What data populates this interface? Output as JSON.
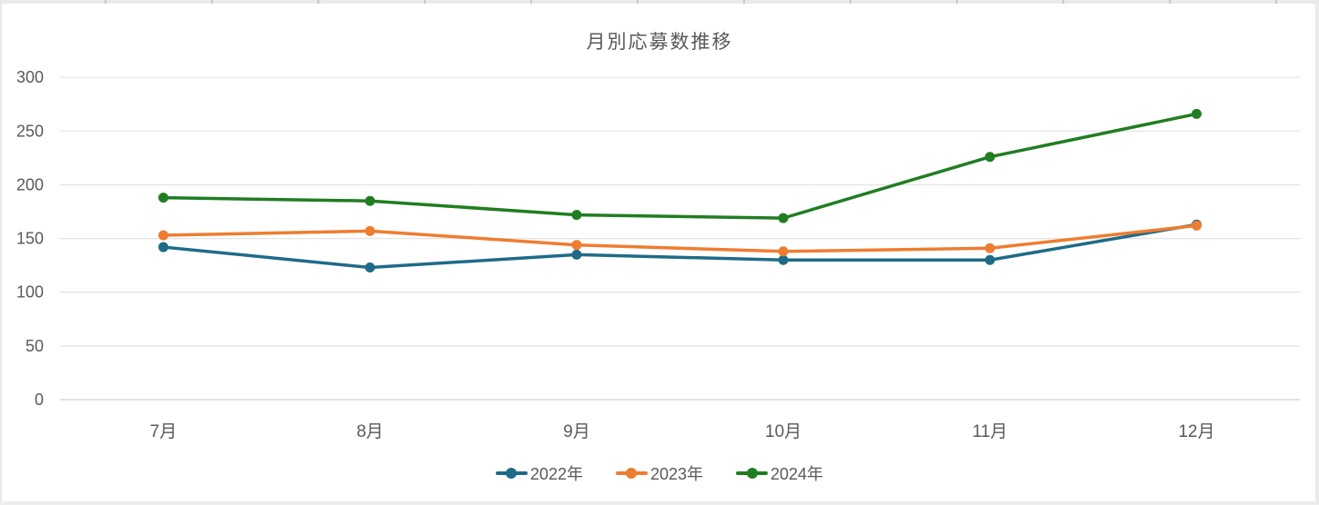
{
  "chart_data": {
    "type": "line",
    "title": "月別応募数推移",
    "categories": [
      "7月",
      "8月",
      "9月",
      "10月",
      "11月",
      "12月"
    ],
    "series": [
      {
        "name": "2022年",
        "color": "#1f6b87",
        "values": [
          142,
          123,
          135,
          130,
          130,
          163
        ]
      },
      {
        "name": "2023年",
        "color": "#ee7d30",
        "values": [
          153,
          157,
          144,
          138,
          141,
          162
        ]
      },
      {
        "name": "2024年",
        "color": "#217d21",
        "values": [
          188,
          185,
          172,
          169,
          226,
          266
        ]
      }
    ],
    "xlabel": "",
    "ylabel": "",
    "ylim": [
      0,
      300
    ],
    "yticks": [
      0,
      50,
      100,
      150,
      200,
      250,
      300
    ],
    "grid": true,
    "legend_position": "bottom",
    "grid_color": "#e3e3e3",
    "axis_line_color": "#d9d9d9",
    "text_color": "#595959"
  }
}
